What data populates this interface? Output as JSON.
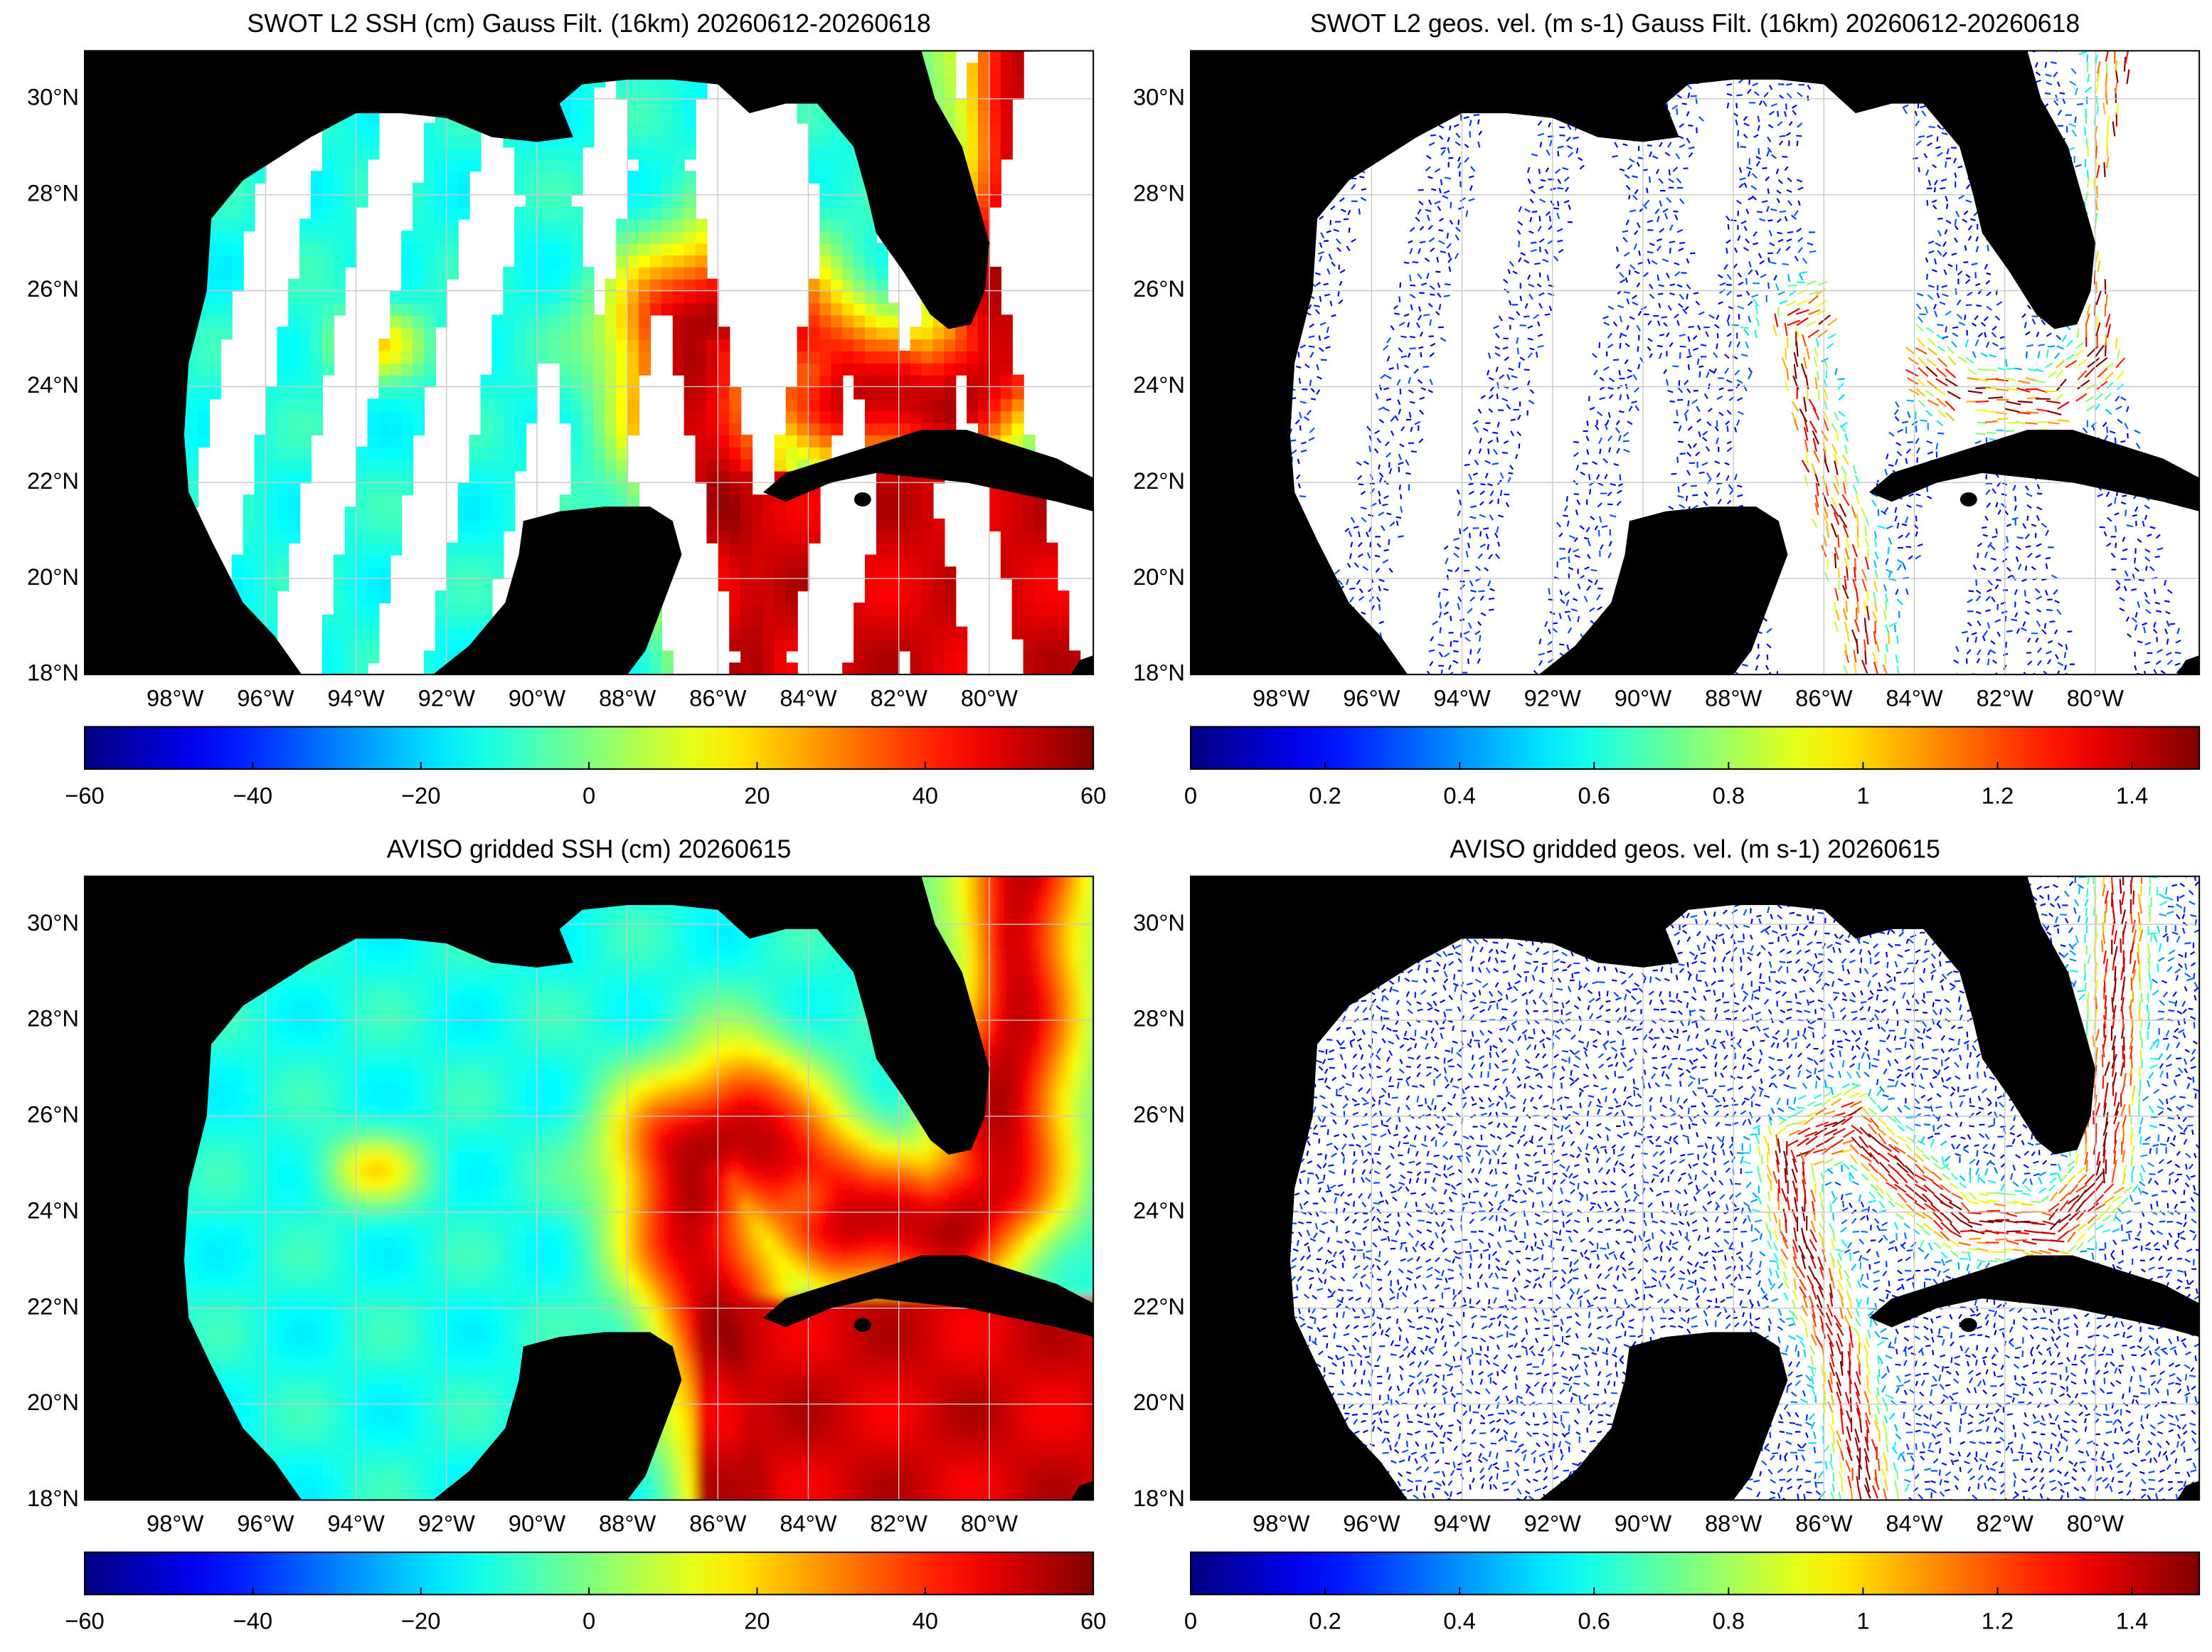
{
  "chart_data": [
    {
      "type": "heatmap",
      "title": "SWOT L2 SSH (cm) Gauss Filt. (16km) 20260612-20260618",
      "xlim": [
        -100,
        -77.7
      ],
      "ylim": [
        18,
        31
      ],
      "grid": true,
      "xticks": [
        {
          "value": -98,
          "label": "98°W"
        },
        {
          "value": -96,
          "label": "96°W"
        },
        {
          "value": -94,
          "label": "94°W"
        },
        {
          "value": -92,
          "label": "92°W"
        },
        {
          "value": -90,
          "label": "90°W"
        },
        {
          "value": -88,
          "label": "88°W"
        },
        {
          "value": -86,
          "label": "86°W"
        },
        {
          "value": -84,
          "label": "84°W"
        },
        {
          "value": -82,
          "label": "82°W"
        },
        {
          "value": -80,
          "label": "80°W"
        }
      ],
      "yticks": [
        {
          "value": 18,
          "label": "18°N"
        },
        {
          "value": 20,
          "label": "20°N"
        },
        {
          "value": 22,
          "label": "22°N"
        },
        {
          "value": 24,
          "label": "24°N"
        },
        {
          "value": 26,
          "label": "26°N"
        },
        {
          "value": 28,
          "label": "28°N"
        },
        {
          "value": 30,
          "label": "30°N"
        }
      ],
      "colorbar": {
        "colormap": "jet",
        "lim": [
          -60,
          60
        ],
        "ticks": [
          {
            "value": -60,
            "label": "−60"
          },
          {
            "value": -40,
            "label": "−40"
          },
          {
            "value": -20,
            "label": "−20"
          },
          0,
          20,
          40,
          60
        ]
      }
    },
    {
      "type": "quiver",
      "title": "SWOT L2 geos. vel. (m s-1) Gauss Filt. (16km) 20260612-20260618",
      "xlim": [
        -100,
        -77.7
      ],
      "ylim": [
        18,
        31
      ],
      "grid": true,
      "xticks": [
        {
          "value": -98,
          "label": "98°W"
        },
        {
          "value": -96,
          "label": "96°W"
        },
        {
          "value": -94,
          "label": "94°W"
        },
        {
          "value": -92,
          "label": "92°W"
        },
        {
          "value": -90,
          "label": "90°W"
        },
        {
          "value": -88,
          "label": "88°W"
        },
        {
          "value": -86,
          "label": "86°W"
        },
        {
          "value": -84,
          "label": "84°W"
        },
        {
          "value": -82,
          "label": "82°W"
        },
        {
          "value": -80,
          "label": "80°W"
        }
      ],
      "yticks": [
        {
          "value": 18,
          "label": "18°N"
        },
        {
          "value": 20,
          "label": "20°N"
        },
        {
          "value": 22,
          "label": "22°N"
        },
        {
          "value": 24,
          "label": "24°N"
        },
        {
          "value": 26,
          "label": "26°N"
        },
        {
          "value": 28,
          "label": "28°N"
        },
        {
          "value": 30,
          "label": "30°N"
        }
      ],
      "colorbar": {
        "colormap": "jet",
        "lim": [
          0,
          1.5
        ],
        "ticks": [
          0,
          0.2,
          0.4,
          0.6,
          0.8,
          1,
          1.2,
          1.4
        ]
      }
    },
    {
      "type": "heatmap",
      "title": "AVISO gridded SSH (cm) 20260615",
      "xlim": [
        -100,
        -77.7
      ],
      "ylim": [
        18,
        31
      ],
      "grid": true,
      "xticks": [
        {
          "value": -98,
          "label": "98°W"
        },
        {
          "value": -96,
          "label": "96°W"
        },
        {
          "value": -94,
          "label": "94°W"
        },
        {
          "value": -92,
          "label": "92°W"
        },
        {
          "value": -90,
          "label": "90°W"
        },
        {
          "value": -88,
          "label": "88°W"
        },
        {
          "value": -86,
          "label": "86°W"
        },
        {
          "value": -84,
          "label": "84°W"
        },
        {
          "value": -82,
          "label": "82°W"
        },
        {
          "value": -80,
          "label": "80°W"
        }
      ],
      "yticks": [
        {
          "value": 18,
          "label": "18°N"
        },
        {
          "value": 20,
          "label": "20°N"
        },
        {
          "value": 22,
          "label": "22°N"
        },
        {
          "value": 24,
          "label": "24°N"
        },
        {
          "value": 26,
          "label": "26°N"
        },
        {
          "value": 28,
          "label": "28°N"
        },
        {
          "value": 30,
          "label": "30°N"
        }
      ],
      "colorbar": {
        "colormap": "jet",
        "lim": [
          -60,
          60
        ],
        "ticks": [
          {
            "value": -60,
            "label": "−60"
          },
          {
            "value": -40,
            "label": "−40"
          },
          {
            "value": -20,
            "label": "−20"
          },
          0,
          20,
          40,
          60
        ]
      }
    },
    {
      "type": "quiver",
      "title": "AVISO gridded geos. vel. (m s-1)  20260615",
      "xlim": [
        -100,
        -77.7
      ],
      "ylim": [
        18,
        31
      ],
      "grid": true,
      "xticks": [
        {
          "value": -98,
          "label": "98°W"
        },
        {
          "value": -96,
          "label": "96°W"
        },
        {
          "value": -94,
          "label": "94°W"
        },
        {
          "value": -92,
          "label": "92°W"
        },
        {
          "value": -90,
          "label": "90°W"
        },
        {
          "value": -88,
          "label": "88°W"
        },
        {
          "value": -86,
          "label": "86°W"
        },
        {
          "value": -84,
          "label": "84°W"
        },
        {
          "value": -82,
          "label": "82°W"
        },
        {
          "value": -80,
          "label": "80°W"
        }
      ],
      "yticks": [
        {
          "value": 18,
          "label": "18°N"
        },
        {
          "value": 20,
          "label": "20°N"
        },
        {
          "value": 22,
          "label": "22°N"
        },
        {
          "value": 24,
          "label": "24°N"
        },
        {
          "value": 26,
          "label": "26°N"
        },
        {
          "value": 28,
          "label": "28°N"
        },
        {
          "value": 30,
          "label": "30°N"
        }
      ],
      "colorbar": {
        "colormap": "jet",
        "lim": [
          0,
          1.5
        ],
        "ticks": [
          0,
          0.2,
          0.4,
          0.6,
          0.8,
          1,
          1.2,
          1.4
        ]
      }
    }
  ]
}
